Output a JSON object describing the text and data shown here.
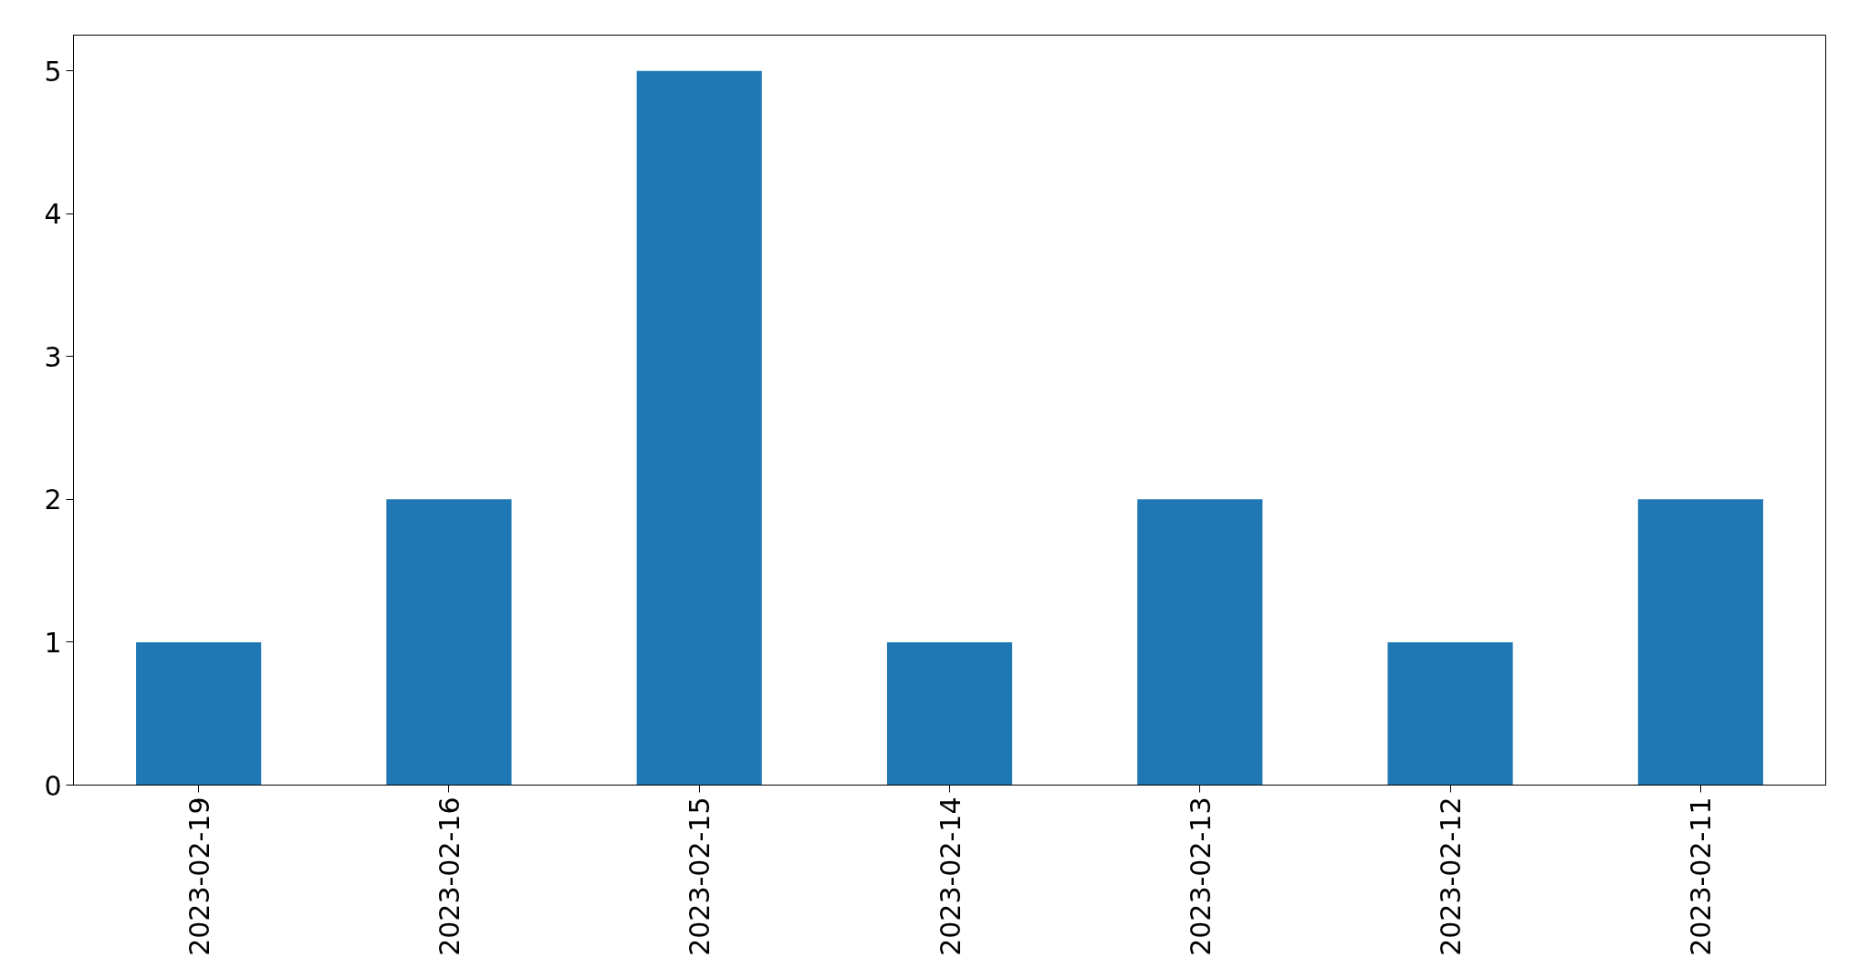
{
  "chart_data": {
    "type": "bar",
    "categories": [
      "2023-02-19",
      "2023-02-16",
      "2023-02-15",
      "2023-02-14",
      "2023-02-13",
      "2023-02-12",
      "2023-02-11"
    ],
    "values": [
      1,
      2,
      5,
      1,
      2,
      1,
      2
    ],
    "color": "#1f77b4",
    "ylim": [
      0,
      5.25
    ],
    "yticks": [
      0,
      1,
      2,
      3,
      4,
      5
    ],
    "grid": false
  }
}
